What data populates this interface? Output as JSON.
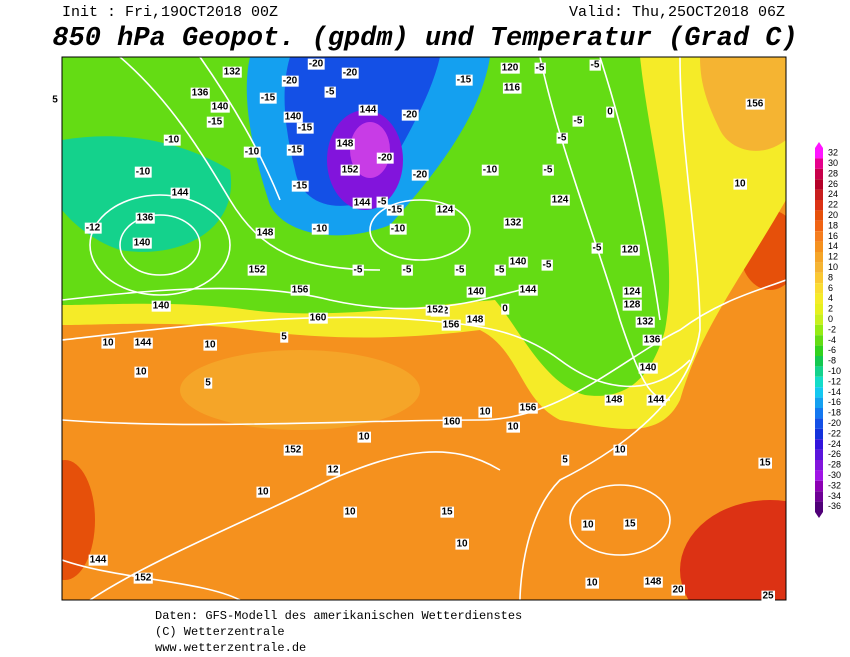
{
  "header": {
    "init": "Init : Fri,19OCT2018 00Z",
    "valid": "Valid: Thu,25OCT2018 06Z",
    "title": "850 hPa Geopot. (gpdm) und Temperatur (Grad C)"
  },
  "colorbar": {
    "levels": [
      {
        "value": 32,
        "color": "#ff14ff"
      },
      {
        "value": 30,
        "color": "#e6008c"
      },
      {
        "value": 28,
        "color": "#c8004b"
      },
      {
        "value": 26,
        "color": "#b40028"
      },
      {
        "value": 24,
        "color": "#c81e1e"
      },
      {
        "value": 22,
        "color": "#dc3214"
      },
      {
        "value": 20,
        "color": "#e6500a"
      },
      {
        "value": 18,
        "color": "#f06414"
      },
      {
        "value": 16,
        "color": "#f57d1e"
      },
      {
        "value": 14,
        "color": "#f5911e"
      },
      {
        "value": 12,
        "color": "#f5a528"
      },
      {
        "value": 10,
        "color": "#f5b432"
      },
      {
        "value": 8,
        "color": "#fac832"
      },
      {
        "value": 6,
        "color": "#fadc32"
      },
      {
        "value": 4,
        "color": "#f5eb28"
      },
      {
        "value": 2,
        "color": "#e6f01e"
      },
      {
        "value": 0,
        "color": "#c8f01e"
      },
      {
        "value": -2,
        "color": "#96eb14"
      },
      {
        "value": -4,
        "color": "#64dc14"
      },
      {
        "value": -6,
        "color": "#32d21e"
      },
      {
        "value": -8,
        "color": "#14c850"
      },
      {
        "value": -10,
        "color": "#14d28c"
      },
      {
        "value": -12,
        "color": "#14dcc8"
      },
      {
        "value": -14,
        "color": "#14c8f0"
      },
      {
        "value": -16,
        "color": "#14a0f0"
      },
      {
        "value": -18,
        "color": "#1478f0"
      },
      {
        "value": -20,
        "color": "#1450e6"
      },
      {
        "value": -22,
        "color": "#1432dc"
      },
      {
        "value": -24,
        "color": "#3214dc"
      },
      {
        "value": -26,
        "color": "#5a14dc"
      },
      {
        "value": -28,
        "color": "#8214dc"
      },
      {
        "value": -30,
        "color": "#a014e6"
      },
      {
        "value": -32,
        "color": "#8c00b4"
      },
      {
        "value": -34,
        "color": "#6e0096"
      },
      {
        "value": -36,
        "color": "#500078"
      }
    ]
  },
  "map": {
    "contour_labels": [
      "132",
      "-20",
      "-20",
      "-20",
      "-5",
      "120",
      "-5",
      "-5",
      "156",
      "136",
      "-15",
      "140",
      "116",
      "144",
      "-15",
      "140",
      "-15",
      "-10",
      "-10",
      "-20",
      "0",
      "-15",
      "148",
      "-5",
      "-5",
      "152",
      "-5",
      "-15",
      "-20",
      "-10",
      "-15",
      "144",
      "124",
      "-15",
      "144",
      "-20",
      "-5",
      "10",
      "-10",
      "136",
      "-12",
      "140",
      "148",
      "-10",
      "-10",
      "124",
      "132",
      "-5",
      "120",
      "5",
      "140",
      "152",
      "-5",
      "-5",
      "156",
      "140",
      "-5",
      "144",
      "124",
      "-5",
      "10",
      "144",
      "140",
      "0",
      "152",
      "148",
      "128",
      "10",
      "5",
      "160",
      "152",
      "156",
      "132",
      "136",
      "5",
      "10",
      "140",
      "148",
      "144",
      "10",
      "10",
      "156",
      "160",
      "10",
      "10",
      "5",
      "152",
      "12",
      "10",
      "15",
      "10",
      "10",
      "15",
      "10",
      "15",
      "144",
      "152",
      "10",
      "148",
      "20",
      "25",
      "-5"
    ]
  },
  "footer": {
    "line1": "Daten: GFS-Modell des amerikanischen Wetterdienstes",
    "line2": "(C) Wetterzentrale",
    "line3": "www.wetterzentrale.de"
  }
}
